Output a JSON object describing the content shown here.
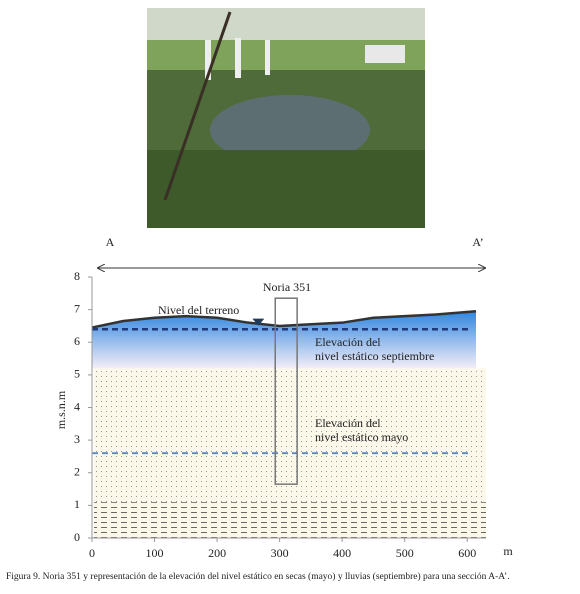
{
  "figure": {
    "caption": "Figura 9. Noria 351 y representación de la elevación del nivel estático en secas (mayo) y lluvias (septiembre) para una sección A-A’."
  },
  "chart_data": {
    "type": "section",
    "section": [
      "A",
      "A’"
    ],
    "y_label": "m.s.n.m",
    "x_label": "m",
    "xlim": [
      0,
      630
    ],
    "ylim": [
      0,
      8
    ],
    "xticks": [
      0,
      100,
      200,
      300,
      400,
      500,
      600
    ],
    "yticks": [
      0,
      1,
      2,
      3,
      4,
      5,
      6,
      7,
      8
    ],
    "terrain": {
      "label": "Nivel del terreno",
      "color": "#333333",
      "x": [
        0,
        50,
        100,
        150,
        200,
        250,
        300,
        350,
        400,
        450,
        500,
        550,
        614
      ],
      "values": [
        6.45,
        6.65,
        6.75,
        6.8,
        6.75,
        6.6,
        6.5,
        6.55,
        6.6,
        6.75,
        6.8,
        6.85,
        6.95
      ]
    },
    "levels": [
      {
        "label": [
          "Elevación  del",
          "nivel  estático septiembre"
        ],
        "value": 6.4,
        "color": "#1f3a7a"
      },
      {
        "label": [
          "Elevación  del",
          "nivel  estático mayo"
        ],
        "value": 2.6,
        "color": "#5b86c4"
      }
    ],
    "marker": {
      "x": 266,
      "value": 6.6
    },
    "well": {
      "label": "Noria 351",
      "x": [
        293,
        328
      ],
      "top": 7.35,
      "bottom": 1.65
    },
    "layers": [
      {
        "bottom": 0,
        "top": 1.1,
        "pattern": "lines"
      },
      {
        "bottom": 1.1,
        "top": 5.2,
        "pattern": "dots"
      },
      {
        "bottom": 5.2,
        "pattern": "water"
      }
    ]
  }
}
